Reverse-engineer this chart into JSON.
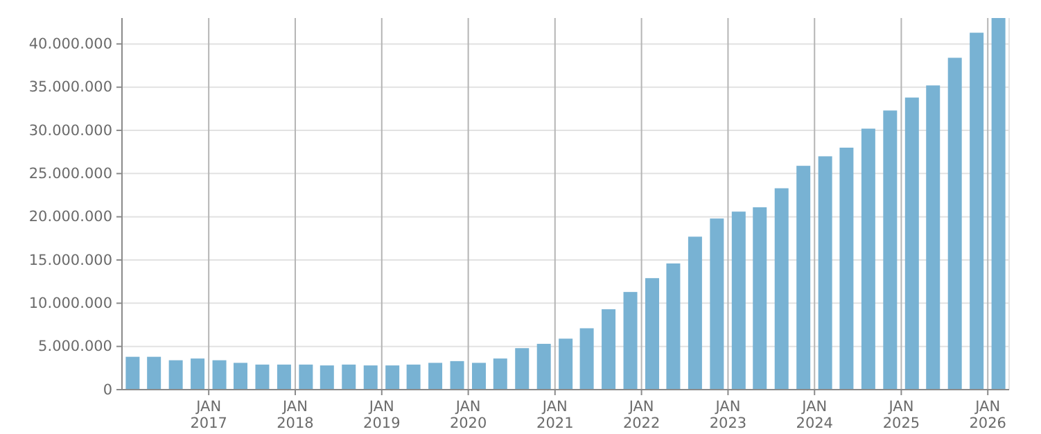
{
  "chart_data": {
    "type": "bar",
    "color": "#78b2d3",
    "x": [
      "2016-02-15",
      "2016-05-15",
      "2016-08-15",
      "2016-11-15",
      "2017-02-15",
      "2017-05-15",
      "2017-08-15",
      "2017-11-15",
      "2018-02-15",
      "2018-05-15",
      "2018-08-15",
      "2018-11-15",
      "2019-02-15",
      "2019-05-15",
      "2019-08-15",
      "2019-11-15",
      "2020-02-15",
      "2020-05-15",
      "2020-08-15",
      "2020-11-15",
      "2021-02-15",
      "2021-05-15",
      "2021-08-15",
      "2021-11-15",
      "2022-02-15",
      "2022-05-15",
      "2022-08-15",
      "2022-11-15",
      "2023-02-15",
      "2023-05-15",
      "2023-08-15",
      "2023-11-15",
      "2024-02-15",
      "2024-05-15",
      "2024-08-15",
      "2024-11-15",
      "2025-02-15",
      "2025-05-15",
      "2025-08-15",
      "2025-11-15",
      "2026-02-15"
    ],
    "values": [
      3800000,
      3800000,
      3400000,
      3600000,
      3400000,
      3100000,
      2900000,
      2900000,
      2900000,
      2800000,
      2900000,
      2800000,
      2800000,
      2900000,
      3100000,
      3300000,
      3100000,
      3600000,
      4800000,
      5300000,
      5900000,
      7100000,
      9300000,
      11300000,
      12900000,
      14600000,
      17700000,
      19800000,
      20600000,
      21100000,
      23300000,
      25900000,
      27000000,
      28000000,
      30200000,
      32300000,
      33800000,
      35200000,
      38400000,
      41300000,
      43000000
    ],
    "xlim": [
      "2016-01-01",
      "2026-04-01"
    ],
    "xticks": [
      {
        "value": "2017-01",
        "label": "JAN\n2017"
      },
      {
        "value": "2018-01",
        "label": "JAN\n2018"
      },
      {
        "value": "2019-01",
        "label": "JAN\n2019"
      },
      {
        "value": "2020-01",
        "label": "JAN\n2020"
      },
      {
        "value": "2021-01",
        "label": "JAN\n2021"
      },
      {
        "value": "2022-01",
        "label": "JAN\n2022"
      },
      {
        "value": "2023-01",
        "label": "JAN\n2023"
      },
      {
        "value": "2024-01",
        "label": "JAN\n2024"
      },
      {
        "value": "2025-01",
        "label": "JAN\n2025"
      },
      {
        "value": "2026-01",
        "label": "JAN\n2026"
      }
    ],
    "ylim": [
      0,
      43000000
    ],
    "yticks": [
      {
        "value": 0,
        "label": "0"
      },
      {
        "value": 5000000,
        "label": "5.000.000"
      },
      {
        "value": 10000000,
        "label": "10.000.000"
      },
      {
        "value": 15000000,
        "label": "15.000.000"
      },
      {
        "value": 20000000,
        "label": "20.000.000"
      },
      {
        "value": 25000000,
        "label": "25.000.000"
      },
      {
        "value": 30000000,
        "label": "30.000.000"
      },
      {
        "value": 35000000,
        "label": "35.000.000"
      },
      {
        "value": 40000000,
        "label": "40.000.000"
      }
    ],
    "grid": true
  }
}
